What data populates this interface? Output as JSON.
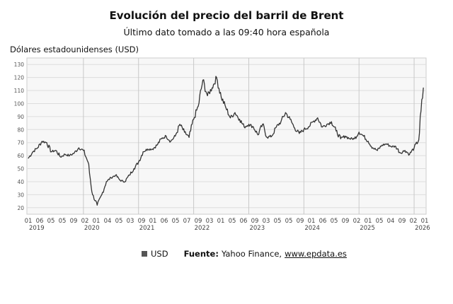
{
  "chart_data": {
    "type": "line",
    "title": "Evolución del precio del barril de Brent",
    "subtitle": "Último dato tomado a las 09:40 hora española",
    "ylabel": "Dólares estadounidenses (USD)",
    "ylim": [
      15,
      135
    ],
    "yticks": [
      20,
      30,
      40,
      50,
      60,
      70,
      80,
      90,
      100,
      110,
      120,
      130
    ],
    "grid": true,
    "legend_position": "bottom",
    "x_tick_labels": [
      "01",
      "06",
      "05",
      "05",
      "09",
      "02",
      "01",
      "04",
      "05",
      "03",
      "09",
      "01",
      "06",
      "05",
      "07",
      "09",
      "03",
      "01",
      "05",
      "06",
      "09",
      "03",
      "05",
      "05",
      "09",
      "01",
      "06",
      "05",
      "09",
      "02",
      "01",
      "05",
      "04",
      "09",
      "02",
      "01"
    ],
    "x_year_labels": [
      "2019",
      "2020",
      "2021",
      "2022",
      "2023",
      "2024",
      "2025",
      "2026"
    ],
    "series": [
      {
        "name": "USD",
        "color": "#333333",
        "x": [
          "2019-01",
          "2019-02",
          "2019-03",
          "2019-04",
          "2019-05",
          "2019-06",
          "2019-07",
          "2019-08",
          "2019-09",
          "2019-10",
          "2019-11",
          "2019-12",
          "2020-01",
          "2020-02",
          "2020-03",
          "2020-04",
          "2020-05",
          "2020-06",
          "2020-07",
          "2020-08",
          "2020-09",
          "2020-10",
          "2020-11",
          "2020-12",
          "2021-01",
          "2021-02",
          "2021-03",
          "2021-04",
          "2021-05",
          "2021-06",
          "2021-07",
          "2021-08",
          "2021-09",
          "2021-10",
          "2021-11",
          "2021-12",
          "2022-01",
          "2022-02",
          "2022-03",
          "2022-04",
          "2022-05",
          "2022-06",
          "2022-07",
          "2022-08",
          "2022-09",
          "2022-10",
          "2022-11",
          "2022-12",
          "2023-01",
          "2023-02",
          "2023-03",
          "2023-04",
          "2023-05",
          "2023-06",
          "2023-07",
          "2023-08",
          "2023-09",
          "2023-10",
          "2023-11",
          "2023-12",
          "2024-01",
          "2024-02",
          "2024-03",
          "2024-04",
          "2024-05",
          "2024-06",
          "2024-07",
          "2024-08",
          "2024-09",
          "2024-10",
          "2024-11",
          "2024-12",
          "2025-01",
          "2025-02",
          "2025-03",
          "2025-04",
          "2025-05",
          "2025-06",
          "2025-07",
          "2025-08",
          "2025-09",
          "2025-10",
          "2025-11",
          "2025-12",
          "2026-01",
          "2026-02",
          "2026-03"
        ],
        "values": [
          58,
          63,
          66,
          71,
          70,
          63,
          64,
          59,
          61,
          60,
          62,
          66,
          64,
          55,
          30,
          22,
          30,
          40,
          43,
          45,
          41,
          40,
          45,
          50,
          55,
          63,
          65,
          65,
          68,
          73,
          75,
          71,
          75,
          84,
          78,
          74,
          88,
          98,
          118,
          106,
          112,
          120,
          105,
          97,
          89,
          93,
          88,
          82,
          84,
          82,
          76,
          84,
          74,
          75,
          82,
          86,
          93,
          88,
          81,
          77,
          80,
          82,
          86,
          89,
          82,
          84,
          86,
          79,
          73,
          75,
          73,
          73,
          78,
          75,
          71,
          66,
          64,
          68,
          69,
          67,
          67,
          62,
          64,
          61,
          66,
          72,
          112
        ]
      }
    ],
    "source_label": "Fuente:",
    "source_text": "Yahoo Finance,",
    "source_link": "www.epdata.es"
  }
}
